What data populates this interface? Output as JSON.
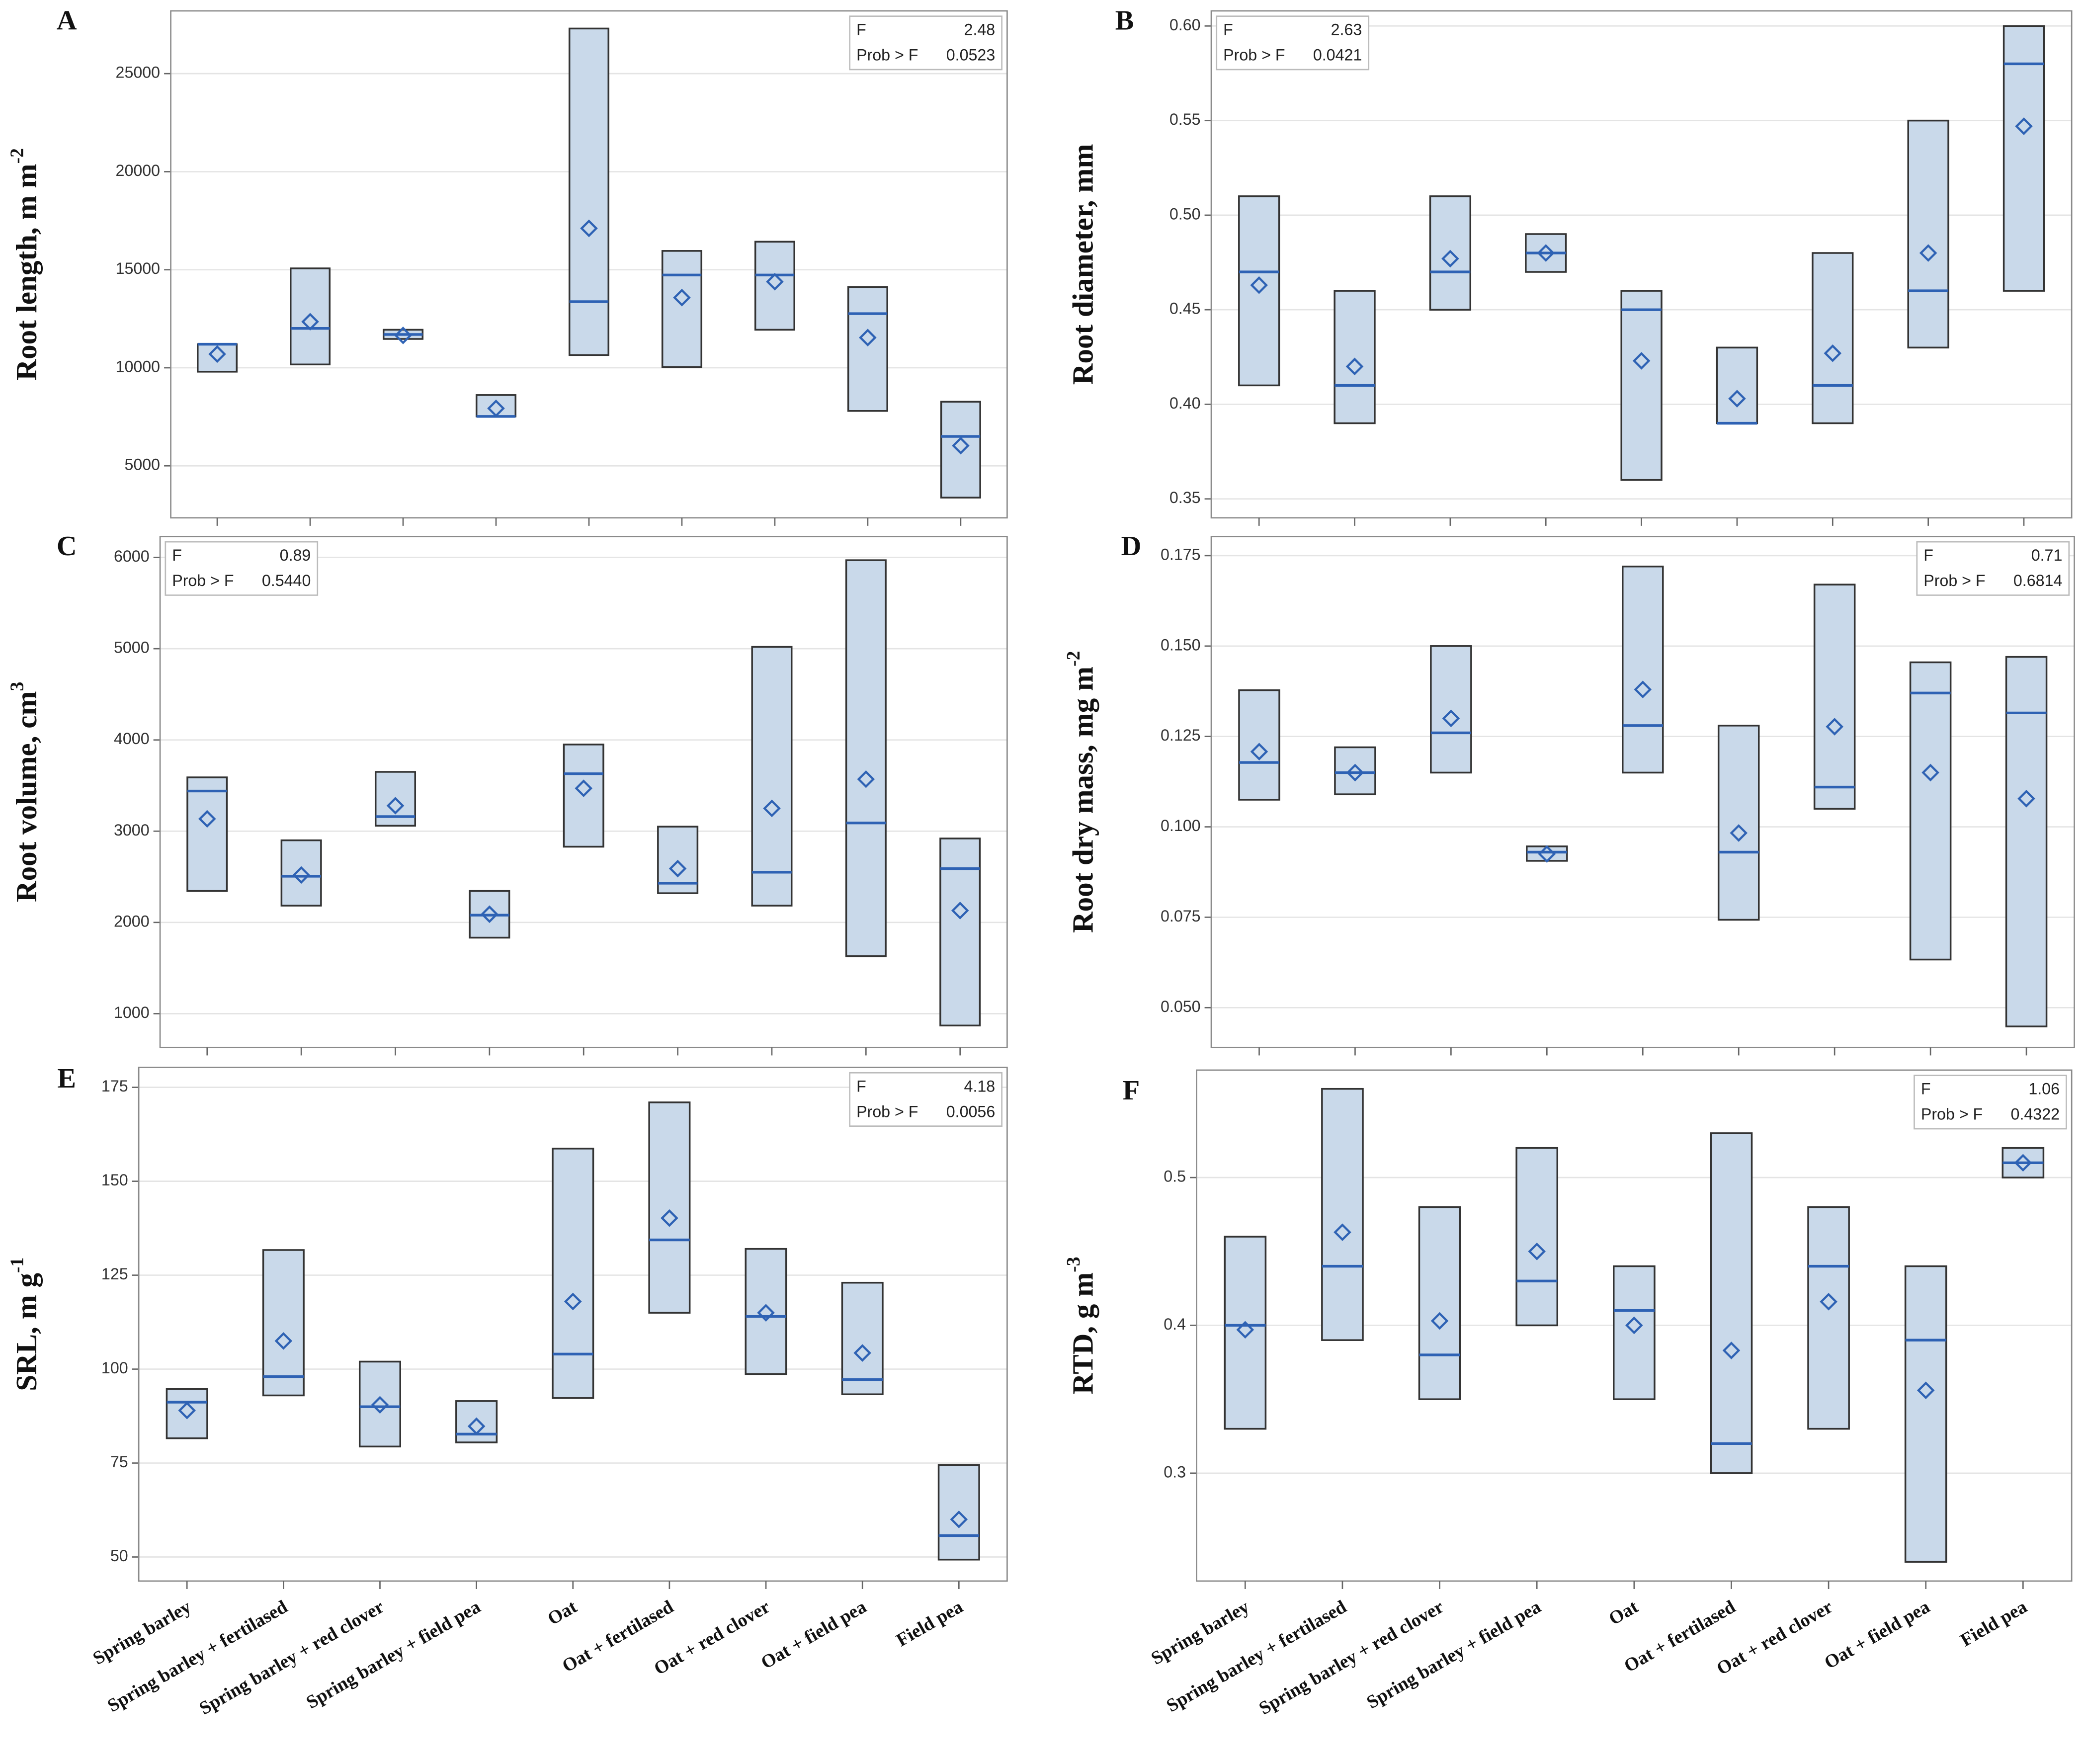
{
  "chart_data": [
    {
      "type": "box",
      "panel": "A",
      "ylabel": "Root length, m m",
      "ylabel_sup": "-2",
      "categories": [
        null,
        null,
        null,
        null,
        null,
        null,
        null,
        null,
        null
      ],
      "low": [
        9800,
        10170,
        11470,
        7520,
        10650,
        10040,
        11940,
        7800,
        3380
      ],
      "median": [
        11200,
        12010,
        11700,
        7520,
        13370,
        14730,
        14730,
        12760,
        6500
      ],
      "high": [
        11200,
        15070,
        11940,
        8610,
        27300,
        15960,
        16430,
        14120,
        8270
      ],
      "mean": [
        10700,
        12350,
        11650,
        7930,
        17110,
        13580,
        14390,
        11540,
        6030
      ],
      "ylim": [
        2350,
        28200
      ],
      "yticks": [
        5000,
        10000,
        15000,
        20000,
        25000
      ],
      "grid": true,
      "stats": {
        "labels": [
          "F",
          "Prob > F"
        ],
        "values": [
          "2.48",
          "0.0523"
        ]
      },
      "legend": "upper right",
      "fill": "#c9d9ea",
      "edge": "#333333",
      "median_color": "#2e62b4"
    },
    {
      "type": "box",
      "panel": "B",
      "ylabel": "Root diameter, mm",
      "categories": [
        null,
        null,
        null,
        null,
        null,
        null,
        null,
        null,
        null
      ],
      "low": [
        0.41,
        0.39,
        0.45,
        0.47,
        0.36,
        0.39,
        0.39,
        0.43,
        0.46
      ],
      "median": [
        0.47,
        0.41,
        0.47,
        0.48,
        0.45,
        0.39,
        0.41,
        0.46,
        0.58
      ],
      "high": [
        0.51,
        0.46,
        0.51,
        0.49,
        0.46,
        0.43,
        0.48,
        0.55,
        0.6
      ],
      "mean": [
        0.463,
        0.42,
        0.477,
        0.48,
        0.423,
        0.403,
        0.427,
        0.48,
        0.547
      ],
      "ylim": [
        0.34,
        0.608
      ],
      "yticks": [
        0.35,
        {
          "value": 0.4,
          "label": "0.40"
        },
        0.45,
        {
          "value": 0.5,
          "label": "0.50"
        },
        0.55,
        {
          "value": 0.6,
          "label": "0.60"
        }
      ],
      "grid": true,
      "stats": {
        "labels": [
          "F",
          "Prob > F"
        ],
        "values": [
          "2.63",
          "0.0421"
        ]
      },
      "legend": "upper left",
      "fill": "#c9d9ea",
      "edge": "#333333",
      "median_color": "#2e62b4"
    },
    {
      "type": "box",
      "panel": "C",
      "ylabel": "Root volume, cm",
      "ylabel_sup": "3",
      "categories": [
        null,
        null,
        null,
        null,
        null,
        null,
        null,
        null,
        null
      ],
      "low": [
        2345,
        2184,
        3060,
        1833,
        2830,
        2320,
        2184,
        1630,
        870
      ],
      "median": [
        3440,
        2506,
        3160,
        2080,
        3630,
        2430,
        2550,
        3090,
        2590
      ],
      "high": [
        3590,
        2900,
        3650,
        2345,
        3950,
        3050,
        5020,
        5970,
        2920
      ],
      "mean": [
        3135,
        2520,
        3280,
        2090,
        3470,
        2590,
        3250,
        3570,
        2130
      ],
      "ylim": [
        630,
        6230
      ],
      "yticks": [
        1000,
        2000,
        3000,
        4000,
        5000,
        6000
      ],
      "grid": true,
      "stats": {
        "labels": [
          "F",
          "Prob > F"
        ],
        "values": [
          "0.89",
          "0.5440"
        ]
      },
      "legend": "upper left",
      "fill": "#c9d9ea",
      "edge": "#333333",
      "median_color": "#2e62b4"
    },
    {
      "type": "box",
      "panel": "D",
      "ylabel": "Root dry mass, mg m",
      "ylabel_sup": "-2",
      "categories": [
        null,
        null,
        null,
        null,
        null,
        null,
        null,
        null,
        null
      ],
      "low": [
        0.1075,
        0.109,
        0.115,
        0.0906,
        0.115,
        0.0743,
        0.105,
        0.0633,
        0.0448
      ],
      "median": [
        0.1178,
        0.115,
        0.126,
        0.093,
        0.128,
        0.093,
        0.111,
        0.137,
        0.1315
      ],
      "high": [
        0.1378,
        0.122,
        0.15,
        0.0946,
        0.172,
        0.128,
        0.167,
        0.1455,
        0.147
      ],
      "mean": [
        0.1208,
        0.115,
        0.13,
        0.0925,
        0.138,
        0.0983,
        0.1277,
        0.115,
        0.1078
      ],
      "ylim": [
        0.039,
        0.1803
      ],
      "yticks": [
        {
          "value": 0.05,
          "label": "0.050"
        },
        0.075,
        {
          "value": 0.1,
          "label": "0.100"
        },
        0.125,
        {
          "value": 0.15,
          "label": "0.150"
        },
        0.175
      ],
      "grid": true,
      "stats": {
        "labels": [
          "F",
          "Prob > F"
        ],
        "values": [
          "0.71",
          "0.6814"
        ]
      },
      "legend": "upper right",
      "fill": "#c9d9ea",
      "edge": "#333333",
      "median_color": "#2e62b4"
    },
    {
      "type": "box",
      "panel": "E",
      "ylabel": "SRL, m g",
      "ylabel_sup": "-1",
      "categories": [
        "Spring barley",
        "Spring barley + fertilased",
        "Spring barley + red clover",
        "Spring barley + field pea",
        "Oat",
        "Oat + fertilased",
        "Oat + red clover",
        "Oat + field pea",
        "Field pea"
      ],
      "low": [
        81.6,
        93,
        79.4,
        80.5,
        92.3,
        115,
        98.7,
        93.3,
        49.3
      ],
      "median": [
        91.2,
        98,
        90,
        82.7,
        104,
        134.4,
        114,
        97.2,
        55.7
      ],
      "high": [
        94.7,
        131.7,
        102,
        91.5,
        158.7,
        171,
        132,
        123,
        74.5
      ],
      "mean": [
        89,
        107.5,
        90.5,
        84.8,
        118,
        140.2,
        115,
        104.3,
        60
      ],
      "ylim": [
        43.6,
        180.3
      ],
      "yticks": [
        50,
        75,
        100,
        125,
        150,
        175
      ],
      "grid": true,
      "stats": {
        "labels": [
          "F",
          "Prob > F"
        ],
        "values": [
          "4.18",
          "0.0056"
        ]
      },
      "legend": "upper right",
      "fill": "#c9d9ea",
      "edge": "#333333",
      "median_color": "#2e62b4"
    },
    {
      "type": "box",
      "panel": "F",
      "ylabel": "RTD, g m",
      "ylabel_sup": "-3",
      "categories": [
        "Spring barley",
        "Spring barley + fertilased",
        "Spring barley + red clover",
        "Spring barley + field pea",
        "Oat",
        "Oat + fertilased",
        "Oat + red clover",
        "Oat + field pea",
        "Field pea"
      ],
      "low": [
        0.33,
        0.39,
        0.35,
        0.4,
        0.35,
        0.3,
        0.33,
        0.24,
        0.5
      ],
      "median": [
        0.4,
        0.44,
        0.38,
        0.43,
        0.41,
        0.32,
        0.44,
        0.39,
        0.51
      ],
      "high": [
        0.46,
        0.56,
        0.48,
        0.52,
        0.44,
        0.53,
        0.48,
        0.44,
        0.52
      ],
      "mean": [
        0.397,
        0.463,
        0.403,
        0.45,
        0.4,
        0.383,
        0.416,
        0.356,
        0.51
      ],
      "ylim": [
        0.227,
        0.5727
      ],
      "yticks": [
        0.3,
        0.4,
        0.5
      ],
      "grid": true,
      "stats": {
        "labels": [
          "F",
          "Prob > F"
        ],
        "values": [
          "1.06",
          "0.4322"
        ]
      },
      "legend": "upper right",
      "fill": "#c9d9ea",
      "edge": "#333333",
      "median_color": "#2e62b4"
    }
  ]
}
